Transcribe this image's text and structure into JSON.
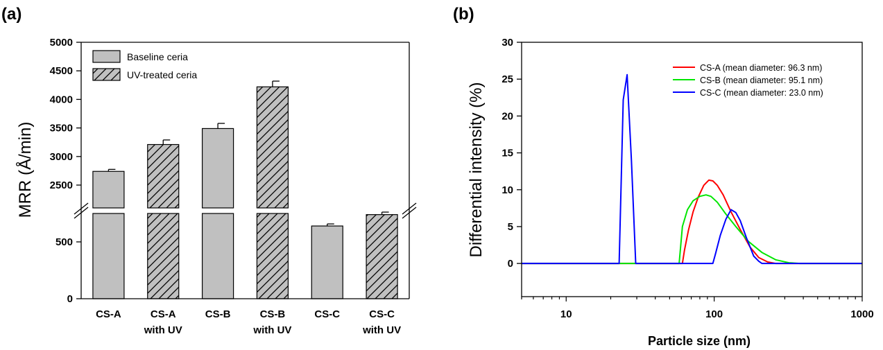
{
  "chart_data": [
    {
      "panel_label": "(a)",
      "type": "bar",
      "ylabel": "MRR (Å/min)",
      "xlabel": "",
      "categories": [
        {
          "line1": "CS-A",
          "line2": ""
        },
        {
          "line1": "CS-A",
          "line2": "with UV"
        },
        {
          "line1": "CS-B",
          "line2": ""
        },
        {
          "line1": "CS-B",
          "line2": "with UV"
        },
        {
          "line1": "CS-C",
          "line2": ""
        },
        {
          "line1": "CS-C",
          "line2": "with UV"
        }
      ],
      "values": [
        2740,
        3210,
        3490,
        4220,
        640,
        740
      ],
      "errors": [
        35,
        80,
        90,
        100,
        18,
        22
      ],
      "bar_series": [
        "baseline",
        "uv",
        "baseline",
        "uv",
        "baseline",
        "uv"
      ],
      "series": [
        {
          "key": "baseline",
          "name": "Baseline ceria",
          "fill": "#c0c0c0",
          "pattern": "solid"
        },
        {
          "key": "uv",
          "name": "UV-treated ceria",
          "fill": "#c0c0c0",
          "pattern": "hatched"
        }
      ],
      "axis_break": {
        "lower_max": 750,
        "upper_min": 2100
      },
      "ylim_lower": [
        0,
        750
      ],
      "ylim_upper": [
        2100,
        5000
      ],
      "yticks_lower": [
        0,
        500
      ],
      "yticks_upper": [
        2500,
        3000,
        3500,
        4000,
        4500,
        5000
      ],
      "legend_position": "top-left",
      "grid": false
    },
    {
      "panel_label": "(b)",
      "type": "line",
      "xlabel": "Particle size (nm)",
      "ylabel": "Differential intensity (%)",
      "x_scale": "log",
      "xlim": [
        5,
        1000
      ],
      "ylim": [
        -4.5,
        30
      ],
      "xticks": [
        10,
        100,
        1000
      ],
      "yticks": [
        0,
        5,
        10,
        15,
        20,
        25,
        30
      ],
      "legend_position": "top-right",
      "grid": false,
      "series": [
        {
          "name": "CS-A (mean diameter: 96.3 nm)",
          "color": "#ff0000",
          "x": [
            5,
            61,
            63,
            67,
            72,
            78,
            85,
            92,
            98,
            105,
            115,
            130,
            150,
            175,
            200,
            230,
            260,
            1000
          ],
          "y": [
            0,
            0,
            1.8,
            4.5,
            7.0,
            9.0,
            10.6,
            11.3,
            11.2,
            10.6,
            9.3,
            7.0,
            4.6,
            2.2,
            0.8,
            0.2,
            0,
            0
          ]
        },
        {
          "name": "CS-B (mean diameter: 95.1 nm)",
          "color": "#00e600",
          "x": [
            5,
            58,
            61,
            66,
            72,
            80,
            88,
            95,
            105,
            120,
            140,
            170,
            210,
            260,
            320,
            380,
            1000
          ],
          "y": [
            0,
            0,
            5.0,
            7.3,
            8.5,
            9.1,
            9.3,
            9.1,
            8.3,
            6.7,
            5.0,
            3.0,
            1.5,
            0.5,
            0.1,
            0,
            0
          ]
        },
        {
          "name": "CS-C (mean diameter: 23.0 nm)",
          "color": "#0000ff",
          "x": [
            5,
            22.8,
            24.3,
            25.8,
            27.6,
            29.5,
            98,
            102,
            110,
            120,
            130,
            140,
            150,
            165,
            185,
            200,
            210,
            1000
          ],
          "y": [
            0,
            0,
            22.2,
            25.6,
            14.0,
            0,
            0,
            1.3,
            3.8,
            6.0,
            7.3,
            6.9,
            5.8,
            3.5,
            1.0,
            0.3,
            0,
            0
          ]
        }
      ]
    }
  ]
}
